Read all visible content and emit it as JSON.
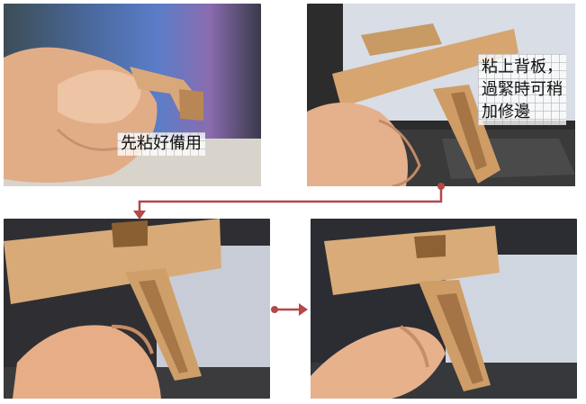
{
  "steps": [
    {
      "caption": "先粘好備用"
    },
    {
      "caption_lines": [
        "粘上背板，",
        "過緊時可稍",
        "加修邊"
      ]
    },
    {
      "caption": ""
    },
    {
      "caption": ""
    }
  ],
  "colors": {
    "arrow": "#b5474a",
    "wood": "#d9a87a",
    "wood_dark": "#9a6a3e",
    "skin": "#e8b48f"
  },
  "icons": [
    "flow-arrow-icon"
  ]
}
